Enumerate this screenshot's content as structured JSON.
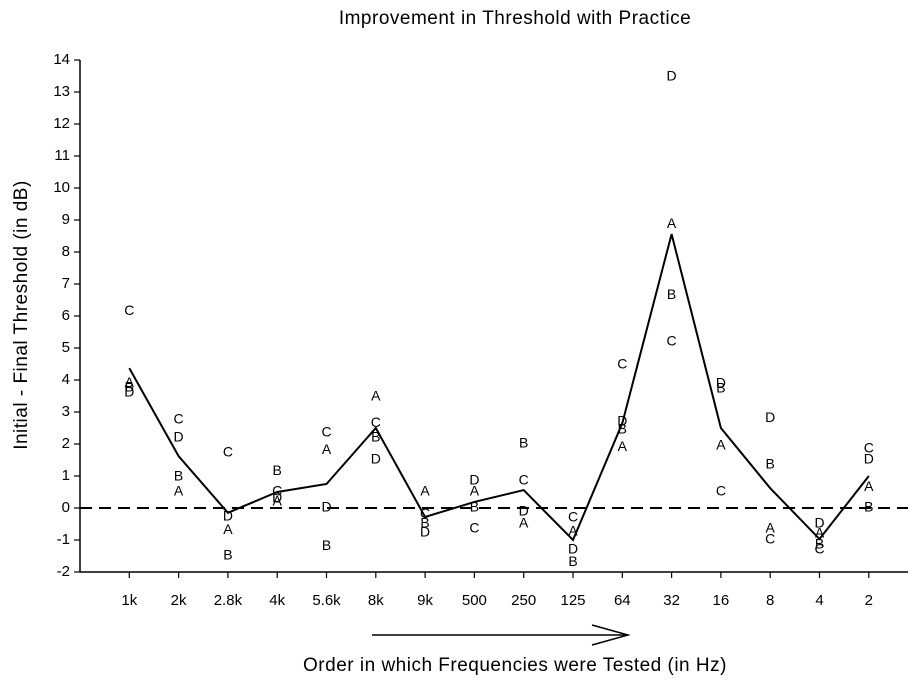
{
  "chart_data": {
    "type": "line",
    "title": "Improvement in Threshold with Practice",
    "xlabel": "Order in which Frequencies were Tested (in Hz)",
    "ylabel": "Initial - Final Threshold (in dB)",
    "categories": [
      "1k",
      "2k",
      "2.8k",
      "4k",
      "5.6k",
      "8k",
      "9k",
      "500",
      "250",
      "125",
      "64",
      "32",
      "16",
      "8",
      "4",
      "2"
    ],
    "values": [
      4.37,
      1.62,
      -0.15,
      0.5,
      0.75,
      2.5,
      -0.28,
      0.19,
      0.56,
      -1.0,
      2.65,
      8.56,
      2.5,
      0.62,
      -0.97,
      1.0
    ],
    "color": "#000000",
    "series": [
      {
        "name": "A",
        "values": [
          3.9,
          0.5,
          -0.69,
          0.2,
          1.8,
          3.47,
          0.5,
          0.5,
          -0.5,
          -0.75,
          1.9,
          8.87,
          1.94,
          -0.65,
          -0.8,
          0.65
        ]
      },
      {
        "name": "B",
        "values": [
          3.75,
          0.97,
          -1.5,
          1.15,
          -1.2,
          2.2,
          -0.5,
          0,
          2.0,
          -1.7,
          2.45,
          6.65,
          3.72,
          1.35,
          -1.15,
          0
        ]
      },
      {
        "name": "C",
        "values": [
          6.15,
          2.75,
          1.72,
          0.5,
          2.35,
          2.65,
          -0.2,
          -0.65,
          0.85,
          -0.3,
          4.47,
          5.2,
          0.5,
          -1.0,
          -1.3,
          1.85
        ]
      },
      {
        "name": "D",
        "values": [
          3.6,
          2.2,
          -0.28,
          0.3,
          0,
          1.5,
          -0.78,
          0.85,
          -0.12,
          -1.3,
          2.7,
          13.47,
          3.88,
          2.8,
          -0.5,
          1.5
        ]
      }
    ],
    "hline": 0,
    "ylim": [
      -2,
      14
    ],
    "yticks": [
      -2,
      -1,
      0,
      1,
      2,
      3,
      4,
      5,
      6,
      7,
      8,
      9,
      10,
      11,
      12,
      13,
      14
    ]
  }
}
